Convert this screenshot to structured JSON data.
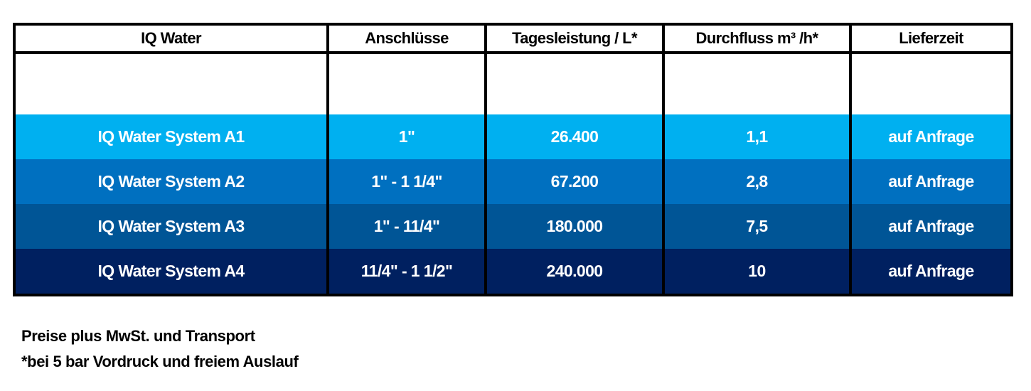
{
  "table": {
    "headers": [
      "IQ Water",
      "Anschlüsse",
      "Tagesleistung / L*",
      "Durchfluss m³ /h*",
      "Lieferzeit"
    ],
    "rows": [
      {
        "cells": [
          "IQ Water System A1",
          "1\"",
          "26.400",
          "1,1",
          "auf Anfrage"
        ],
        "color": "#00b0f0"
      },
      {
        "cells": [
          "IQ Water System A2",
          "1\" - 1 1/4\"",
          "67.200",
          "2,8",
          "auf Anfrage"
        ],
        "color": "#0070c0"
      },
      {
        "cells": [
          "IQ Water System A3",
          "1\" - 11/4\"",
          "180.000",
          "7,5",
          "auf Anfrage"
        ],
        "color": "#005596"
      },
      {
        "cells": [
          "IQ Water System A4",
          "11/4\" - 1 1/2\"",
          "240.000",
          "10",
          "auf Anfrage"
        ],
        "color": "#002060"
      }
    ]
  },
  "notes": [
    "Preise plus MwSt. und Transport",
    "*bei 5 bar Vordruck und freiem Auslauf"
  ]
}
